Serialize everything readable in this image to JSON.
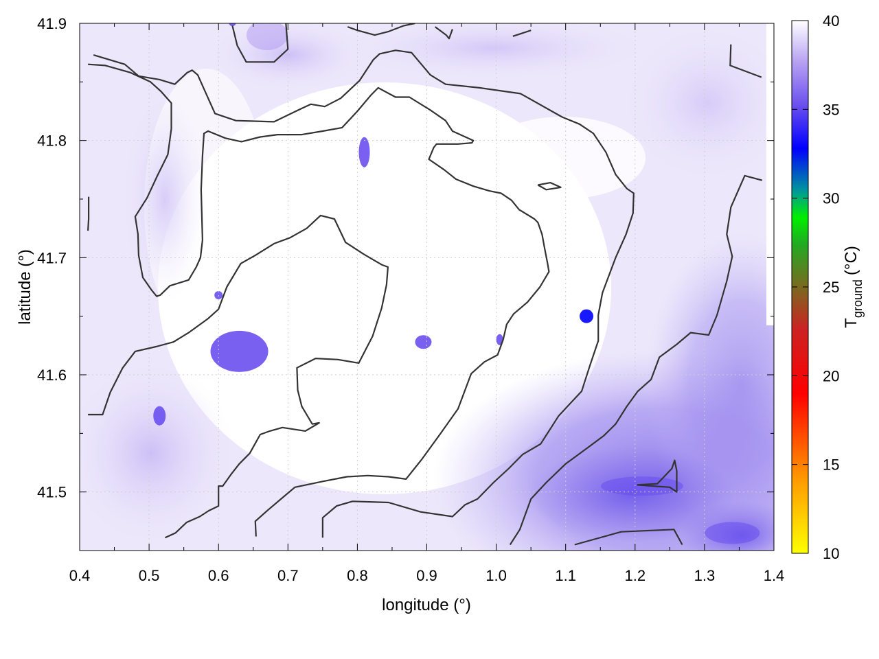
{
  "chart_data": {
    "type": "heatmap",
    "title": "",
    "xlabel": "longitude (°)",
    "ylabel": "latitude (°)",
    "xlim": [
      0.4,
      1.4
    ],
    "ylim": [
      41.45,
      41.9
    ],
    "xticks": [
      "0.4",
      "0.5",
      "0.6",
      "0.7",
      "0.8",
      "0.9",
      "1.0",
      "1.1",
      "1.2",
      "1.3",
      "1.4"
    ],
    "yticks": [
      "41.5",
      "41.6",
      "41.7",
      "41.8",
      "41.9"
    ],
    "grid": true,
    "colorbar": {
      "label_main": "T",
      "label_sub": "ground",
      "label_unit": "(°C)",
      "range": [
        10,
        40
      ],
      "ticks": [
        "10",
        "15",
        "20",
        "25",
        "30",
        "35",
        "40"
      ],
      "colors": [
        "#ffff00",
        "#ff9900",
        "#ff0000",
        "#cc2222",
        "#7a6a20",
        "#22aa22",
        "#00ee00",
        "#009999",
        "#0000ff",
        "#6a4fee",
        "#b59ff2",
        "#ffffff"
      ]
    },
    "field_regions": [
      {
        "lon": 0.63,
        "lat": 41.62,
        "value": 34
      },
      {
        "lon": 0.895,
        "lat": 41.628,
        "value": 34
      },
      {
        "lon": 0.81,
        "lat": 41.79,
        "value": 34
      },
      {
        "lon": 0.6,
        "lat": 41.668,
        "value": 34
      },
      {
        "lon": 1.005,
        "lat": 41.63,
        "value": 35
      },
      {
        "lon": 1.13,
        "lat": 41.65,
        "value": 33
      },
      {
        "lon": 0.515,
        "lat": 41.565,
        "value": 35
      },
      {
        "lon": 0.62,
        "lat": 41.9,
        "value": 34
      },
      {
        "lon": 0.67,
        "lat": 41.89,
        "value": 36
      },
      {
        "lon": 1.21,
        "lat": 41.505,
        "value": 35
      },
      {
        "lon": 1.34,
        "lat": 41.465,
        "value": 34
      }
    ],
    "contours": [
      [
        [
          0.42,
          41.873
        ],
        [
          0.465,
          41.865
        ],
        [
          0.485,
          41.855
        ],
        [
          0.515,
          41.852
        ],
        [
          0.537,
          41.848
        ],
        [
          0.555,
          41.858
        ],
        [
          0.562,
          41.86
        ],
        [
          0.57,
          41.856
        ],
        [
          0.595,
          41.823
        ],
        [
          0.625,
          41.817
        ],
        [
          0.68,
          41.816
        ],
        [
          0.715,
          41.826
        ],
        [
          0.733,
          41.831
        ],
        [
          0.753,
          41.829
        ],
        [
          0.776,
          41.836
        ],
        [
          0.803,
          41.851
        ],
        [
          0.823,
          41.869
        ],
        [
          0.832,
          41.874
        ],
        [
          0.855,
          41.877
        ],
        [
          0.878,
          41.875
        ],
        [
          0.905,
          41.856
        ],
        [
          0.927,
          41.848
        ],
        [
          0.976,
          41.845
        ],
        [
          1.035,
          41.84
        ],
        [
          1.095,
          41.82
        ],
        [
          1.12,
          41.814
        ],
        [
          1.14,
          41.806
        ],
        [
          1.158,
          41.79
        ],
        [
          1.172,
          41.771
        ],
        [
          1.188,
          41.759
        ],
        [
          1.198,
          41.755
        ],
        [
          1.197,
          41.738
        ],
        [
          1.187,
          41.72
        ],
        [
          1.172,
          41.7
        ],
        [
          1.153,
          41.67
        ],
        [
          1.147,
          41.651
        ],
        [
          1.147,
          41.629
        ],
        [
          1.135,
          41.608
        ],
        [
          1.123,
          41.586
        ],
        [
          1.09,
          41.565
        ],
        [
          1.064,
          41.541
        ],
        [
          1.038,
          41.532
        ],
        [
          1.018,
          41.52
        ],
        [
          0.996,
          41.508
        ],
        [
          0.973,
          41.494
        ],
        [
          0.955,
          41.489
        ],
        [
          0.937,
          41.479
        ],
        [
          0.891,
          41.483
        ],
        [
          0.845,
          41.491
        ],
        [
          0.793,
          41.492
        ],
        [
          0.77,
          41.488
        ],
        [
          0.75,
          41.478
        ],
        [
          0.75,
          41.461
        ]
      ],
      [
        [
          0.412,
          41.865
        ],
        [
          0.437,
          41.864
        ],
        [
          0.473,
          41.858
        ],
        [
          0.502,
          41.85
        ],
        [
          0.517,
          41.842
        ],
        [
          0.532,
          41.832
        ],
        [
          0.532,
          41.81
        ],
        [
          0.527,
          41.788
        ],
        [
          0.512,
          41.77
        ],
        [
          0.497,
          41.751
        ],
        [
          0.48,
          41.735
        ],
        [
          0.484,
          41.72
        ],
        [
          0.485,
          41.702
        ],
        [
          0.491,
          41.683
        ],
        [
          0.504,
          41.672
        ],
        [
          0.511,
          41.667
        ],
        [
          0.516,
          41.668
        ],
        [
          0.53,
          41.676
        ],
        [
          0.557,
          41.681
        ],
        [
          0.568,
          41.692
        ],
        [
          0.574,
          41.7
        ],
        [
          0.577,
          41.715
        ],
        [
          0.575,
          41.758
        ],
        [
          0.577,
          41.787
        ],
        [
          0.579,
          41.806
        ],
        [
          0.585,
          41.808
        ],
        [
          0.61,
          41.802
        ],
        [
          0.633,
          41.799
        ],
        [
          0.66,
          41.803
        ],
        [
          0.685,
          41.805
        ],
        [
          0.72,
          41.805
        ],
        [
          0.75,
          41.808
        ],
        [
          0.778,
          41.811
        ],
        [
          0.8,
          41.825
        ],
        [
          0.82,
          41.839
        ],
        [
          0.83,
          41.845
        ],
        [
          0.855,
          41.837
        ],
        [
          0.875,
          41.837
        ],
        [
          0.905,
          41.826
        ],
        [
          0.927,
          41.817
        ],
        [
          0.937,
          41.808
        ],
        [
          0.967,
          41.8
        ],
        [
          0.965,
          41.798
        ],
        [
          0.945,
          41.797
        ],
        [
          0.914,
          41.797
        ],
        [
          0.91,
          41.794
        ],
        [
          0.903,
          41.784
        ],
        [
          0.925,
          41.775
        ],
        [
          0.942,
          41.767
        ],
        [
          0.967,
          41.761
        ],
        [
          0.99,
          41.757
        ],
        [
          1.007,
          41.755
        ],
        [
          1.022,
          41.749
        ],
        [
          1.033,
          41.741
        ],
        [
          1.055,
          41.733
        ],
        [
          1.06,
          41.73
        ],
        [
          1.066,
          41.72
        ],
        [
          1.07,
          41.707
        ],
        [
          1.074,
          41.695
        ],
        [
          1.076,
          41.688
        ],
        [
          1.063,
          41.675
        ],
        [
          1.045,
          41.662
        ],
        [
          1.025,
          41.652
        ],
        [
          1.015,
          41.643
        ],
        [
          1.01,
          41.63
        ],
        [
          1.002,
          41.617
        ],
        [
          0.983,
          41.611
        ],
        [
          0.964,
          41.601
        ],
        [
          0.945,
          41.571
        ],
        [
          0.92,
          41.55
        ],
        [
          0.893,
          41.528
        ],
        [
          0.87,
          41.511
        ],
        [
          0.845,
          41.513
        ],
        [
          0.815,
          41.514
        ],
        [
          0.785,
          41.513
        ],
        [
          0.75,
          41.509
        ],
        [
          0.71,
          41.504
        ],
        [
          0.69,
          41.494
        ],
        [
          0.672,
          41.485
        ],
        [
          0.653,
          41.475
        ],
        [
          0.654,
          41.462
        ]
      ],
      [
        [
          0.412,
          41.566
        ],
        [
          0.433,
          41.566
        ],
        [
          0.444,
          41.585
        ],
        [
          0.462,
          41.606
        ],
        [
          0.48,
          41.62
        ],
        [
          0.51,
          41.624
        ],
        [
          0.535,
          41.628
        ],
        [
          0.557,
          41.636
        ],
        [
          0.585,
          41.648
        ],
        [
          0.6,
          41.656
        ],
        [
          0.612,
          41.675
        ],
        [
          0.632,
          41.695
        ],
        [
          0.653,
          41.702
        ],
        [
          0.68,
          41.712
        ],
        [
          0.703,
          41.717
        ],
        [
          0.727,
          41.725
        ],
        [
          0.747,
          41.736
        ],
        [
          0.767,
          41.733
        ],
        [
          0.783,
          41.713
        ],
        [
          0.809,
          41.703
        ],
        [
          0.835,
          41.694
        ],
        [
          0.844,
          41.692
        ],
        [
          0.842,
          41.677
        ],
        [
          0.835,
          41.657
        ],
        [
          0.822,
          41.633
        ],
        [
          0.802,
          41.61
        ],
        [
          0.772,
          41.613
        ],
        [
          0.74,
          41.614
        ],
        [
          0.713,
          41.606
        ],
        [
          0.714,
          41.587
        ],
        [
          0.72,
          41.573
        ],
        [
          0.735,
          41.558
        ],
        [
          0.745,
          41.559
        ],
        [
          0.725,
          41.552
        ],
        [
          0.692,
          41.555
        ],
        [
          0.674,
          41.552
        ],
        [
          0.66,
          41.549
        ],
        [
          0.645,
          41.533
        ],
        [
          0.63,
          41.524
        ],
        [
          0.618,
          41.515
        ],
        [
          0.606,
          41.505
        ],
        [
          0.6,
          41.505
        ],
        [
          0.6,
          41.488
        ],
        [
          0.586,
          41.484
        ],
        [
          0.573,
          41.479
        ],
        [
          0.554,
          41.474
        ],
        [
          0.538,
          41.465
        ],
        [
          0.523,
          41.461
        ]
      ],
      [
        [
          0.412,
          41.723
        ],
        [
          0.413,
          41.733
        ],
        [
          0.413,
          41.752
        ]
      ],
      [
        [
          1.06,
          41.762
        ],
        [
          1.078,
          41.764
        ],
        [
          1.093,
          41.76
        ],
        [
          1.072,
          41.758
        ],
        [
          1.06,
          41.762
        ]
      ],
      [
        [
          1.02,
          41.455
        ],
        [
          1.034,
          41.468
        ],
        [
          1.05,
          41.494
        ],
        [
          1.072,
          41.508
        ],
        [
          1.1,
          41.524
        ],
        [
          1.13,
          41.537
        ],
        [
          1.155,
          41.548
        ],
        [
          1.172,
          41.558
        ],
        [
          1.188,
          41.573
        ],
        [
          1.204,
          41.586
        ],
        [
          1.223,
          41.596
        ],
        [
          1.235,
          41.615
        ],
        [
          1.26,
          41.626
        ],
        [
          1.28,
          41.636
        ],
        [
          1.306,
          41.634
        ],
        [
          1.318,
          41.651
        ],
        [
          1.332,
          41.68
        ],
        [
          1.34,
          41.701
        ],
        [
          1.332,
          41.72
        ],
        [
          1.338,
          41.743
        ],
        [
          1.358,
          41.77
        ],
        [
          1.383,
          41.766
        ]
      ],
      [
        [
          1.203,
          41.506
        ],
        [
          1.232,
          41.507
        ],
        [
          1.253,
          41.52
        ],
        [
          1.257,
          41.527
        ],
        [
          1.26,
          41.518
        ],
        [
          1.26,
          41.5
        ],
        [
          1.25,
          41.504
        ],
        [
          1.203,
          41.506
        ]
      ],
      [
        [
          1.113,
          41.455
        ],
        [
          1.18,
          41.466
        ],
        [
          1.256,
          41.468
        ],
        [
          1.268,
          41.455
        ]
      ],
      [
        [
          1.338,
          41.882
        ],
        [
          1.337,
          41.864
        ],
        [
          1.382,
          41.854
        ]
      ],
      [
        [
          0.786,
          41.897
        ],
        [
          0.8,
          41.894
        ],
        [
          0.825,
          41.89
        ],
        [
          0.845,
          41.893
        ],
        [
          0.867,
          41.898
        ],
        [
          0.883,
          41.9
        ]
      ],
      [
        [
          0.912,
          41.897
        ],
        [
          0.928,
          41.89
        ],
        [
          0.932,
          41.887
        ],
        [
          0.937,
          41.895
        ]
      ],
      [
        [
          1.024,
          41.889
        ],
        [
          1.05,
          41.894
        ]
      ],
      [
        [
          0.62,
          41.898
        ],
        [
          0.627,
          41.881
        ],
        [
          0.64,
          41.867
        ],
        [
          0.68,
          41.867
        ],
        [
          0.7,
          41.878
        ],
        [
          0.697,
          41.9
        ]
      ]
    ]
  }
}
